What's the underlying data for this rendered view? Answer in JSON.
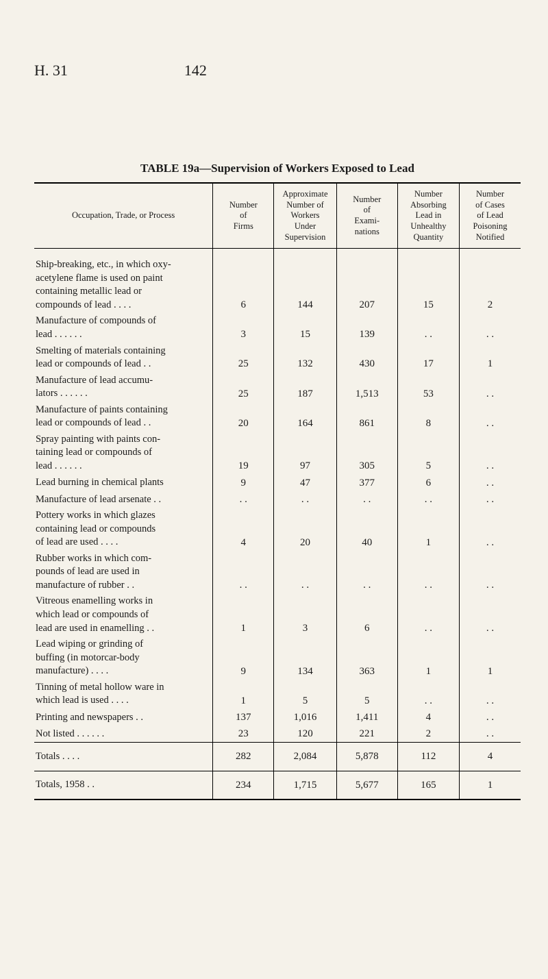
{
  "header": {
    "left": "H. 31",
    "pageNumber": "142"
  },
  "tableTitle": {
    "prefix": "TABLE 19a—",
    "main": "Supervision of Workers Exposed to Lead"
  },
  "columns": {
    "c0": "Occupation, Trade, or Process",
    "c1": "Number\nof\nFirms",
    "c2": "Approximate\nNumber of\nWorkers\nUnder\nSupervision",
    "c3": "Number\nof\nExami-\nnations",
    "c4": "Number\nAbsorbing\nLead in\nUnhealthy\nQuantity",
    "c5": "Number\nof Cases\nof Lead\nPoisoning\nNotified"
  },
  "rows": [
    {
      "occ": "Ship-breaking, etc., in which oxy-\n  acetylene flame is used on paint\n  containing metallic lead or\n  compounds of lead . .           . .",
      "v": [
        "6",
        "144",
        "207",
        "15",
        "2"
      ]
    },
    {
      "occ": "Manufacture of compounds of\n  lead       . .             . .            . .",
      "v": [
        "3",
        "15",
        "139",
        ". .",
        ". ."
      ]
    },
    {
      "occ": "Smelting of materials containing\n  lead or compounds of lead    . .",
      "v": [
        "25",
        "132",
        "430",
        "17",
        "1"
      ]
    },
    {
      "occ": "Manufacture of lead accumu-\n  lators      . .            . .            . .",
      "v": [
        "25",
        "187",
        "1,513",
        "53",
        ". ."
      ]
    },
    {
      "occ": "Manufacture of paints containing\n  lead or compounds of lead    . .",
      "v": [
        "20",
        "164",
        "861",
        "8",
        ". ."
      ]
    },
    {
      "occ": "Spray painting with paints con-\n  taining lead or compounds of\n  lead        . .            . .            . .",
      "v": [
        "19",
        "97",
        "305",
        "5",
        ". ."
      ]
    },
    {
      "occ": "Lead burning in chemical plants",
      "v": [
        "9",
        "47",
        "377",
        "6",
        ". ."
      ]
    },
    {
      "occ": "Manufacture of lead arsenate  . .",
      "v": [
        ". .",
        ". .",
        ". .",
        ". .",
        ". ."
      ]
    },
    {
      "occ": "Pottery works in which glazes\n  containing lead or compounds\n  of lead are used       . .         . .",
      "v": [
        "4",
        "20",
        "40",
        "1",
        ". ."
      ]
    },
    {
      "occ": "Rubber works in which com-\n  pounds of lead are used in\n  manufacture of rubber        . .",
      "v": [
        ". .",
        ". .",
        ". .",
        ". .",
        ". ."
      ]
    },
    {
      "occ": "Vitreous enamelling works in\n  which lead or compounds of\n  lead are used in enamelling  . .",
      "v": [
        "1",
        "3",
        "6",
        ". .",
        ". ."
      ]
    },
    {
      "occ": "Lead wiping or grinding of\n  buffing (in motorcar-body\n  manufacture)         . .            . .",
      "v": [
        "9",
        "134",
        "363",
        "1",
        "1"
      ]
    },
    {
      "occ": "Tinning of metal hollow ware in\n  which lead is used  . .           . .",
      "v": [
        "1",
        "5",
        "5",
        ". .",
        ". ."
      ]
    },
    {
      "occ": "Printing and newspapers        . .",
      "v": [
        "137",
        "1,016",
        "1,411",
        "4",
        ". ."
      ]
    },
    {
      "occ": "Not listed  . .           . .            . .",
      "v": [
        "23",
        "120",
        "221",
        "2",
        ". ."
      ]
    }
  ],
  "totals": {
    "label": "Totals        . .            . .",
    "v": [
      "282",
      "2,084",
      "5,878",
      "112",
      "4"
    ]
  },
  "totals1958": {
    "label": "Totals, 1958             . .",
    "v": [
      "234",
      "1,715",
      "5,677",
      "165",
      "1"
    ]
  }
}
